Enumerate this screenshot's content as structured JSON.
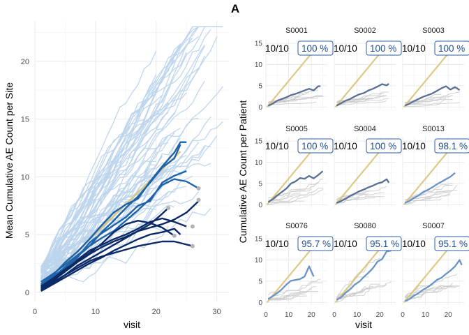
{
  "title": "A",
  "colors": {
    "grid_major": "#ebebeb",
    "grid_minor": "#f5f5f5",
    "ref_line": "#d9c47a",
    "site_light": "#bcd4ec",
    "site_blue": "#1f63a8",
    "site_dark": "#0b2a66",
    "end_dot": "#b3b3b3",
    "patient_line": "#cccccc",
    "facet_mean_dark": "#5a6f94",
    "facet_mean_light": "#6a93c6",
    "badge_border": "#2e5fa0",
    "badge_text": "#1f4e8c"
  },
  "chart_data": [
    {
      "type": "line",
      "name": "left",
      "xlabel": "visit",
      "ylabel": "Mean Cumulative AE Count per Site",
      "xlim": [
        0,
        32
      ],
      "ylim": [
        -0.8,
        23.5
      ],
      "xticks": [
        0,
        10,
        20,
        30
      ],
      "yticks": [
        0,
        5,
        10,
        15,
        20
      ],
      "grid": true,
      "reference_line": {
        "x": [
          1,
          24
        ],
        "y": [
          0.5,
          12.2
        ]
      },
      "background_series_count": 60,
      "background_series_range": {
        "x_end_min": 20,
        "x_end_max": 31,
        "slope_min": 0.25,
        "slope_max": 0.8
      },
      "series": [
        {
          "x": [
            1,
            3,
            5,
            7,
            9,
            11,
            13,
            15,
            17,
            19,
            21,
            23,
            24
          ],
          "y": [
            0.5,
            1.3,
            2.2,
            3.1,
            4.0,
            5.2,
            6.2,
            7.3,
            8.3,
            9.5,
            10.8,
            11.6,
            12.8
          ],
          "tone": "blue"
        },
        {
          "x": [
            1,
            3,
            5,
            7,
            9,
            11,
            13,
            15,
            17,
            19,
            21,
            23,
            24,
            25
          ],
          "y": [
            0.7,
            1.5,
            2.6,
            3.5,
            4.6,
            5.8,
            6.9,
            7.6,
            8.1,
            9.6,
            10.9,
            12.1,
            13.0,
            13.0
          ],
          "tone": "blue"
        },
        {
          "x": [
            1,
            3,
            5,
            7,
            9,
            11,
            13,
            15,
            17,
            19,
            21,
            23,
            25
          ],
          "y": [
            0.6,
            1.4,
            2.1,
            3.0,
            4.3,
            5.1,
            5.8,
            6.5,
            7.5,
            7.9,
            9.5,
            10.1,
            10.5
          ],
          "tone": "blue"
        },
        {
          "x": [
            1,
            3,
            5,
            7,
            9,
            11,
            13,
            15,
            17,
            19,
            21,
            23,
            25,
            27
          ],
          "y": [
            0.9,
            1.6,
            2.4,
            3.2,
            4.0,
            4.7,
            5.3,
            6.2,
            7.1,
            8.1,
            9.3,
            9.8,
            9.6,
            9.0
          ],
          "tone": "blue"
        },
        {
          "x": [
            1,
            3,
            5,
            7,
            9,
            11,
            13,
            15,
            17,
            19,
            21,
            23,
            25,
            27
          ],
          "y": [
            0.3,
            1.0,
            1.8,
            2.6,
            3.3,
            3.9,
            4.4,
            4.8,
            5.3,
            5.6,
            5.9,
            6.3,
            6.9,
            7.9
          ],
          "tone": "dark"
        },
        {
          "x": [
            1,
            3,
            5,
            7,
            9,
            11,
            13,
            15,
            17,
            19,
            21,
            23,
            25
          ],
          "y": [
            0.4,
            1.1,
            1.9,
            2.8,
            3.6,
            4.1,
            4.6,
            5.0,
            5.5,
            6.1,
            6.4,
            6.1,
            5.7
          ],
          "tone": "dark"
        },
        {
          "x": [
            1,
            3,
            5,
            7,
            9,
            11,
            13,
            15,
            17,
            19,
            21,
            22
          ],
          "y": [
            0.2,
            0.8,
            1.5,
            2.3,
            2.9,
            3.5,
            4.1,
            4.7,
            5.3,
            5.9,
            6.8,
            7.3
          ],
          "tone": "dark"
        },
        {
          "x": [
            1,
            3,
            5,
            7,
            9,
            11,
            13,
            15,
            17,
            19,
            21,
            23
          ],
          "y": [
            0.5,
            1.2,
            2.0,
            2.7,
            3.4,
            4.2,
            5.2,
            5.9,
            6.2,
            6.0,
            5.6,
            4.9
          ],
          "tone": "dark"
        },
        {
          "x": [
            1,
            3,
            5,
            7,
            9,
            11,
            13,
            15,
            17,
            19,
            21,
            23,
            24
          ],
          "y": [
            0.1,
            0.7,
            1.3,
            1.9,
            2.5,
            3.0,
            3.6,
            4.1,
            4.6,
            5.0,
            5.2,
            5.5,
            5.0
          ],
          "tone": "dark"
        },
        {
          "x": [
            1,
            3,
            5,
            7,
            9,
            11,
            13,
            15,
            17,
            19,
            21,
            23,
            26
          ],
          "y": [
            0.3,
            0.9,
            1.5,
            2.1,
            2.7,
            3.1,
            3.4,
            3.7,
            4.0,
            4.2,
            4.4,
            4.4,
            4.0
          ],
          "tone": "dark"
        }
      ],
      "end_points": [
        {
          "x": 27,
          "y": 9.0
        },
        {
          "x": 27,
          "y": 8.0
        },
        {
          "x": 26,
          "y": 5.7
        },
        {
          "x": 26,
          "y": 4.0
        },
        {
          "x": 23,
          "y": 4.9
        },
        {
          "x": 22,
          "y": 7.3
        }
      ]
    },
    {
      "type": "line",
      "name": "facets",
      "xlabel": "visit",
      "ylabel": "Cumulative AE Count per Patient",
      "xlim": [
        0,
        27
      ],
      "ylim": [
        -0.6,
        16
      ],
      "xticks": [
        0,
        10,
        20
      ],
      "yticks": [
        0,
        5,
        10,
        15
      ],
      "grid": true,
      "reference_line": {
        "x": [
          0.5,
          24.5
        ],
        "y": [
          0,
          15.5
        ]
      },
      "panels": [
        {
          "site": "S0001",
          "ratio": "10/10",
          "pct": "100 %",
          "tone": "dark",
          "mean": {
            "x": [
              1,
              3,
              5,
              7,
              9,
              11,
              13,
              15,
              17,
              19,
              21,
              23,
              24
            ],
            "y": [
              0.3,
              0.8,
              1.5,
              1.9,
              2.3,
              2.8,
              3.1,
              3.5,
              3.9,
              4.3,
              3.9,
              4.9,
              4.9
            ]
          }
        },
        {
          "site": "S0002",
          "ratio": "10/10",
          "pct": "100 %",
          "tone": "dark",
          "mean": {
            "x": [
              1,
              3,
              5,
              7,
              9,
              11,
              13,
              15,
              17,
              19,
              21,
              23,
              24
            ],
            "y": [
              0.3,
              0.9,
              1.5,
              1.9,
              2.5,
              3.0,
              3.3,
              3.9,
              4.3,
              4.8,
              5.4,
              5.1,
              5.5
            ]
          }
        },
        {
          "site": "S0003",
          "ratio": "10/10",
          "pct": "100 %",
          "tone": "dark",
          "mean": {
            "x": [
              1,
              3,
              5,
              7,
              9,
              11,
              13,
              15,
              17,
              19,
              21,
              23,
              25
            ],
            "y": [
              0.3,
              0.8,
              1.4,
              1.9,
              2.4,
              2.8,
              3.2,
              3.8,
              4.4,
              4.9,
              4.1,
              4.7,
              4.0
            ]
          }
        },
        {
          "site": "S0005",
          "ratio": "10/10",
          "pct": "100 %",
          "tone": "dark",
          "mean": {
            "x": [
              1,
              3,
              5,
              7,
              9,
              11,
              13,
              15,
              17,
              19,
              21,
              23,
              25
            ],
            "y": [
              0.6,
              1.3,
              2.2,
              3.0,
              3.8,
              5.0,
              5.5,
              6.3,
              6.1,
              6.8,
              6.2,
              7.0,
              7.9
            ]
          }
        },
        {
          "site": "S0004",
          "ratio": "10/10",
          "pct": "100 %",
          "tone": "dark",
          "mean": {
            "x": [
              1,
              3,
              5,
              7,
              9,
              11,
              13,
              15,
              17,
              19,
              21,
              23,
              24
            ],
            "y": [
              0.4,
              0.9,
              1.4,
              2.1,
              2.6,
              3.2,
              3.6,
              4.1,
              4.5,
              5.0,
              5.3,
              6.0,
              5.2
            ]
          }
        },
        {
          "site": "S0013",
          "ratio": "10/10",
          "pct": "98.1 %",
          "tone": "light",
          "mean": {
            "x": [
              1,
              3,
              5,
              7,
              9,
              11,
              13,
              15,
              17,
              19,
              21,
              23
            ],
            "y": [
              0.4,
              0.9,
              1.6,
              2.2,
              3.0,
              3.5,
              4.1,
              4.8,
              5.4,
              6.0,
              6.6,
              7.5
            ]
          }
        },
        {
          "site": "S0076",
          "ratio": "10/10",
          "pct": "95.7 %",
          "tone": "light",
          "mean": {
            "x": [
              1,
              3,
              5,
              7,
              9,
              11,
              13,
              15,
              17,
              19,
              21
            ],
            "y": [
              0.8,
              1.5,
              2.2,
              3.1,
              4.2,
              5.1,
              5.3,
              5.5,
              6.1,
              8.5,
              6.1
            ]
          }
        },
        {
          "site": "S0080",
          "ratio": "10/10",
          "pct": "95.1 %",
          "tone": "light",
          "mean": {
            "x": [
              1,
              3,
              5,
              7,
              9,
              11,
              13,
              15,
              17,
              19,
              21,
              23,
              25
            ],
            "y": [
              0.6,
              1.2,
              2.3,
              3.1,
              4.2,
              4.9,
              6.0,
              7.0,
              8.1,
              9.6,
              10.2,
              12.0,
              12.2
            ]
          }
        },
        {
          "site": "S0007",
          "ratio": "10/10",
          "pct": "95.1 %",
          "tone": "light",
          "mean": {
            "x": [
              1,
              3,
              5,
              7,
              9,
              11,
              13,
              15,
              17,
              19,
              21,
              23,
              25,
              26
            ],
            "y": [
              0.3,
              0.8,
              1.6,
              2.2,
              3.0,
              3.6,
              4.4,
              5.3,
              5.8,
              6.7,
              7.5,
              8.5,
              10.0,
              8.8
            ]
          }
        }
      ]
    }
  ]
}
